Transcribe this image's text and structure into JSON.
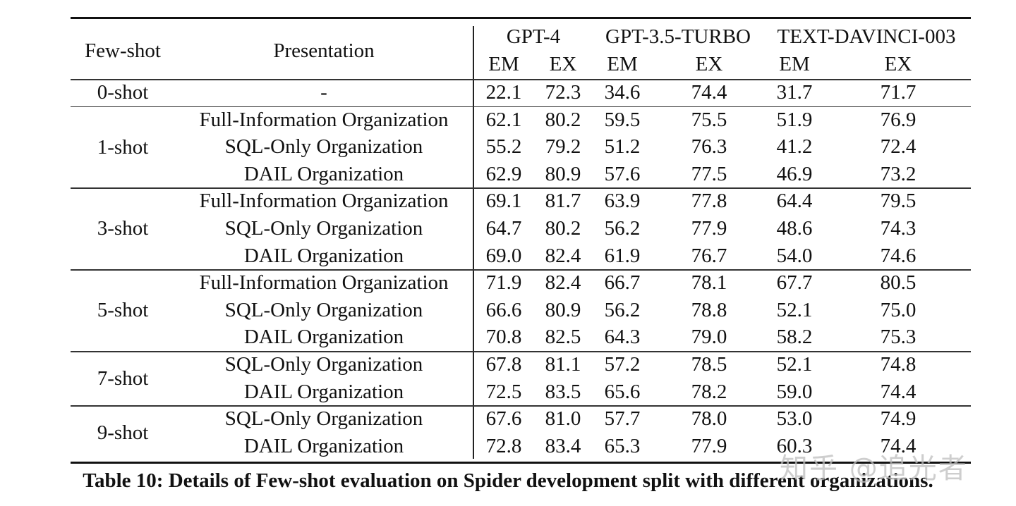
{
  "table": {
    "header": {
      "few_shot": "Few-shot",
      "presentation": "Presentation",
      "models": [
        "GPT-4",
        "GPT-3.5-TURBO",
        "TEXT-DAVINCI-003"
      ],
      "metrics": [
        "EM",
        "EX",
        "EM",
        "EX",
        "EM",
        "EX"
      ]
    },
    "groups": [
      {
        "label": "0-shot",
        "rows": [
          {
            "presentation": "-",
            "values": [
              "22.1",
              "72.3",
              "34.6",
              "74.4",
              "31.7",
              "71.7"
            ]
          }
        ]
      },
      {
        "label": "1-shot",
        "rows": [
          {
            "presentation": "Full-Information Organization",
            "values": [
              "62.1",
              "80.2",
              "59.5",
              "75.5",
              "51.9",
              "76.9"
            ]
          },
          {
            "presentation": "SQL-Only Organization",
            "values": [
              "55.2",
              "79.2",
              "51.2",
              "76.3",
              "41.2",
              "72.4"
            ]
          },
          {
            "presentation": "DAIL Organization",
            "values": [
              "62.9",
              "80.9",
              "57.6",
              "77.5",
              "46.9",
              "73.2"
            ]
          }
        ]
      },
      {
        "label": "3-shot",
        "rows": [
          {
            "presentation": "Full-Information Organization",
            "values": [
              "69.1",
              "81.7",
              "63.9",
              "77.8",
              "64.4",
              "79.5"
            ]
          },
          {
            "presentation": "SQL-Only Organization",
            "values": [
              "64.7",
              "80.2",
              "56.2",
              "77.9",
              "48.6",
              "74.3"
            ]
          },
          {
            "presentation": "DAIL Organization",
            "values": [
              "69.0",
              "82.4",
              "61.9",
              "76.7",
              "54.0",
              "74.6"
            ]
          }
        ]
      },
      {
        "label": "5-shot",
        "rows": [
          {
            "presentation": "Full-Information Organization",
            "values": [
              "71.9",
              "82.4",
              "66.7",
              "78.1",
              "67.7",
              "80.5"
            ]
          },
          {
            "presentation": "SQL-Only Organization",
            "values": [
              "66.6",
              "80.9",
              "56.2",
              "78.8",
              "52.1",
              "75.0"
            ]
          },
          {
            "presentation": "DAIL Organization",
            "values": [
              "70.8",
              "82.5",
              "64.3",
              "79.0",
              "58.2",
              "75.3"
            ]
          }
        ]
      },
      {
        "label": "7-shot",
        "rows": [
          {
            "presentation": "SQL-Only Organization",
            "values": [
              "67.8",
              "81.1",
              "57.2",
              "78.5",
              "52.1",
              "74.8"
            ]
          },
          {
            "presentation": "DAIL Organization",
            "values": [
              "72.5",
              "83.5",
              "65.6",
              "78.2",
              "59.0",
              "74.4"
            ]
          }
        ]
      },
      {
        "label": "9-shot",
        "rows": [
          {
            "presentation": "SQL-Only Organization",
            "values": [
              "67.6",
              "81.0",
              "57.7",
              "78.0",
              "53.0",
              "74.9"
            ]
          },
          {
            "presentation": "DAIL Organization",
            "values": [
              "72.8",
              "83.4",
              "65.3",
              "77.9",
              "60.3",
              "74.4"
            ]
          }
        ]
      }
    ]
  },
  "caption": "Table 10: Details of Few-shot evaluation on Spider development split with different organizations.",
  "watermark": "知乎 @追光者"
}
